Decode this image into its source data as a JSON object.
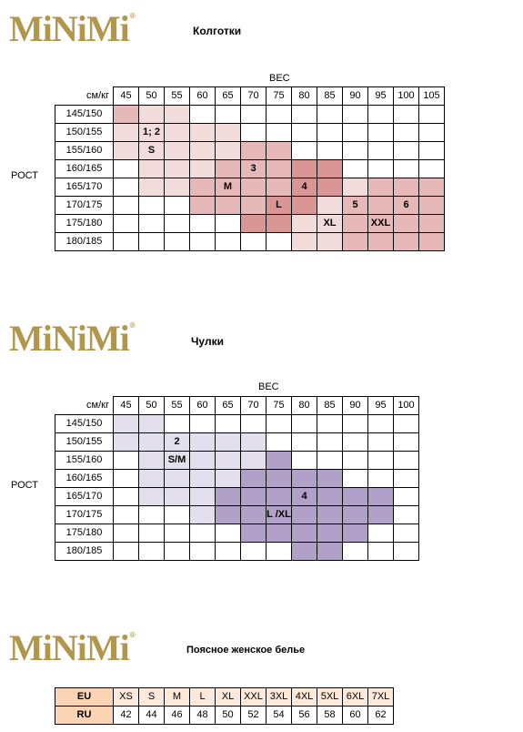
{
  "brand": "MiNiMi",
  "brand_mark": "®",
  "colors": {
    "c1": "#f2dcdb",
    "c2": "#e6b8b7",
    "c3": "#da9694",
    "s1": "#e4dfec",
    "s2": "#b1a0c7",
    "eu_header": "#fbd4b4",
    "eu_row": "#fce9d9"
  },
  "tights": {
    "title": "Колготки",
    "weight_label": "ВЕС",
    "corner": "см/кг",
    "height_label": "РОСТ",
    "weights": [
      "45",
      "50",
      "55",
      "60",
      "65",
      "70",
      "75",
      "80",
      "85",
      "90",
      "95",
      "100",
      "105"
    ],
    "rows": [
      {
        "h": "145/150",
        "cells": [
          [
            "c2",
            ""
          ],
          [
            "c1",
            ""
          ],
          [
            "c1",
            ""
          ],
          [
            "",
            ""
          ],
          [
            "",
            ""
          ],
          [
            "",
            ""
          ],
          [
            "",
            ""
          ],
          [
            "",
            ""
          ],
          [
            "",
            ""
          ],
          [
            "",
            ""
          ],
          [
            "",
            ""
          ],
          [
            "",
            ""
          ],
          [
            "",
            ""
          ]
        ]
      },
      {
        "h": "150/155",
        "cells": [
          [
            "c1",
            ""
          ],
          [
            "c1",
            "1; 2"
          ],
          [
            "c1",
            ""
          ],
          [
            "c1",
            ""
          ],
          [
            "c1",
            ""
          ],
          [
            "",
            ""
          ],
          [
            "",
            ""
          ],
          [
            "",
            ""
          ],
          [
            "",
            ""
          ],
          [
            "",
            ""
          ],
          [
            "",
            ""
          ],
          [
            "",
            ""
          ],
          [
            "",
            ""
          ]
        ]
      },
      {
        "h": "155/160",
        "cells": [
          [
            "c1",
            ""
          ],
          [
            "c1",
            "S"
          ],
          [
            "c1",
            ""
          ],
          [
            "c1",
            ""
          ],
          [
            "c1",
            ""
          ],
          [
            "c2",
            ""
          ],
          [
            "c2",
            ""
          ],
          [
            "",
            ""
          ],
          [
            "",
            ""
          ],
          [
            "",
            ""
          ],
          [
            "",
            ""
          ],
          [
            "",
            ""
          ],
          [
            "",
            ""
          ]
        ]
      },
      {
        "h": "160/165",
        "cells": [
          [
            "",
            ""
          ],
          [
            "c1",
            ""
          ],
          [
            "c1",
            ""
          ],
          [
            "c1",
            ""
          ],
          [
            "c2",
            ""
          ],
          [
            "c2",
            "3"
          ],
          [
            "c2",
            ""
          ],
          [
            "c3",
            ""
          ],
          [
            "c3",
            ""
          ],
          [
            "",
            ""
          ],
          [
            "",
            ""
          ],
          [
            "",
            ""
          ],
          [
            "",
            ""
          ]
        ]
      },
      {
        "h": "165/170",
        "cells": [
          [
            "",
            ""
          ],
          [
            "c1",
            ""
          ],
          [
            "c1",
            ""
          ],
          [
            "c2",
            ""
          ],
          [
            "c2",
            "M"
          ],
          [
            "c2",
            ""
          ],
          [
            "c2",
            ""
          ],
          [
            "c3",
            "4"
          ],
          [
            "c3",
            ""
          ],
          [
            "c1",
            ""
          ],
          [
            "c2",
            ""
          ],
          [
            "c2",
            ""
          ],
          [
            "c2",
            ""
          ]
        ]
      },
      {
        "h": "170/175",
        "cells": [
          [
            "",
            ""
          ],
          [
            "",
            ""
          ],
          [
            "",
            ""
          ],
          [
            "c2",
            ""
          ],
          [
            "c2",
            ""
          ],
          [
            "c2",
            ""
          ],
          [
            "c3",
            "L"
          ],
          [
            "c3",
            ""
          ],
          [
            "c1",
            ""
          ],
          [
            "c2",
            "5"
          ],
          [
            "c2",
            ""
          ],
          [
            "c2",
            "6"
          ],
          [
            "c2",
            ""
          ]
        ]
      },
      {
        "h": "175/180",
        "cells": [
          [
            "",
            ""
          ],
          [
            "",
            ""
          ],
          [
            "",
            ""
          ],
          [
            "",
            ""
          ],
          [
            "",
            ""
          ],
          [
            "c3",
            ""
          ],
          [
            "c3",
            ""
          ],
          [
            "c1",
            ""
          ],
          [
            "c1",
            "XL"
          ],
          [
            "c2",
            ""
          ],
          [
            "c2",
            "XXL"
          ],
          [
            "c2",
            ""
          ],
          [
            "c2",
            ""
          ]
        ]
      },
      {
        "h": "180/185",
        "cells": [
          [
            "",
            ""
          ],
          [
            "",
            ""
          ],
          [
            "",
            ""
          ],
          [
            "",
            ""
          ],
          [
            "",
            ""
          ],
          [
            "",
            ""
          ],
          [
            "",
            ""
          ],
          [
            "c1",
            ""
          ],
          [
            "c1",
            ""
          ],
          [
            "c2",
            ""
          ],
          [
            "c2",
            ""
          ],
          [
            "c2",
            ""
          ],
          [
            "c2",
            ""
          ]
        ]
      }
    ]
  },
  "stockings": {
    "title": "Чулки",
    "weight_label": "ВЕС",
    "corner": "см/кг",
    "height_label": "РОСТ",
    "weights": [
      "45",
      "50",
      "55",
      "60",
      "65",
      "70",
      "75",
      "80",
      "85",
      "90",
      "95",
      "100"
    ],
    "rows": [
      {
        "h": "145/150",
        "cells": [
          [
            "s1",
            ""
          ],
          [
            "s1",
            ""
          ],
          [
            "",
            ""
          ],
          [
            "",
            ""
          ],
          [
            "",
            ""
          ],
          [
            "",
            ""
          ],
          [
            "",
            ""
          ],
          [
            "",
            ""
          ],
          [
            "",
            ""
          ],
          [
            "",
            ""
          ],
          [
            "",
            ""
          ],
          [
            "",
            ""
          ]
        ]
      },
      {
        "h": "150/155",
        "cells": [
          [
            "s1",
            ""
          ],
          [
            "s1",
            ""
          ],
          [
            "s1",
            "2"
          ],
          [
            "s1",
            ""
          ],
          [
            "s1",
            ""
          ],
          [
            "s1",
            ""
          ],
          [
            "",
            ""
          ],
          [
            "",
            ""
          ],
          [
            "",
            ""
          ],
          [
            "",
            ""
          ],
          [
            "",
            ""
          ],
          [
            "",
            ""
          ]
        ]
      },
      {
        "h": "155/160",
        "cells": [
          [
            "",
            ""
          ],
          [
            "s1",
            ""
          ],
          [
            "s1",
            "S/M"
          ],
          [
            "s1",
            ""
          ],
          [
            "s1",
            ""
          ],
          [
            "s1",
            ""
          ],
          [
            "s2",
            ""
          ],
          [
            "",
            ""
          ],
          [
            "",
            ""
          ],
          [
            "",
            ""
          ],
          [
            "",
            ""
          ],
          [
            "",
            ""
          ]
        ]
      },
      {
        "h": "160/165",
        "cells": [
          [
            "",
            ""
          ],
          [
            "s1",
            ""
          ],
          [
            "s1",
            ""
          ],
          [
            "s1",
            ""
          ],
          [
            "s1",
            ""
          ],
          [
            "s2",
            ""
          ],
          [
            "s2",
            ""
          ],
          [
            "s2",
            ""
          ],
          [
            "s2",
            ""
          ],
          [
            "",
            ""
          ],
          [
            "",
            ""
          ],
          [
            "",
            ""
          ]
        ]
      },
      {
        "h": "165/170",
        "cells": [
          [
            "",
            ""
          ],
          [
            "s1",
            ""
          ],
          [
            "s1",
            ""
          ],
          [
            "s1",
            ""
          ],
          [
            "s2",
            ""
          ],
          [
            "s2",
            ""
          ],
          [
            "s2",
            ""
          ],
          [
            "s2",
            "4"
          ],
          [
            "s2",
            ""
          ],
          [
            "s2",
            ""
          ],
          [
            "s2",
            ""
          ],
          [
            "",
            ""
          ]
        ]
      },
      {
        "h": "170/175",
        "cells": [
          [
            "",
            ""
          ],
          [
            "",
            ""
          ],
          [
            "",
            ""
          ],
          [
            "s1",
            ""
          ],
          [
            "s2",
            ""
          ],
          [
            "s2",
            ""
          ],
          [
            "s2",
            "L /XL"
          ],
          [
            "s2",
            ""
          ],
          [
            "s2",
            ""
          ],
          [
            "s2",
            ""
          ],
          [
            "s2",
            ""
          ],
          [
            "",
            ""
          ]
        ]
      },
      {
        "h": "175/180",
        "cells": [
          [
            "",
            ""
          ],
          [
            "",
            ""
          ],
          [
            "",
            ""
          ],
          [
            "",
            ""
          ],
          [
            "",
            ""
          ],
          [
            "s2",
            ""
          ],
          [
            "s2",
            ""
          ],
          [
            "s2",
            ""
          ],
          [
            "s2",
            ""
          ],
          [
            "s2",
            ""
          ],
          [
            "",
            ""
          ],
          [
            "",
            ""
          ]
        ]
      },
      {
        "h": "180/185",
        "cells": [
          [
            "",
            ""
          ],
          [
            "",
            ""
          ],
          [
            "",
            ""
          ],
          [
            "",
            ""
          ],
          [
            "",
            ""
          ],
          [
            "",
            ""
          ],
          [
            "",
            ""
          ],
          [
            "s2",
            ""
          ],
          [
            "s2",
            ""
          ],
          [
            "",
            ""
          ],
          [
            "",
            ""
          ],
          [
            "",
            ""
          ]
        ]
      }
    ]
  },
  "lingerie": {
    "title": "Поясное женское белье",
    "eu_label": "EU",
    "ru_label": "RU",
    "eu": [
      "XS",
      "S",
      "M",
      "L",
      "XL",
      "XXL",
      "3XL",
      "4XL",
      "5XL",
      "6XL",
      "7XL"
    ],
    "ru": [
      "42",
      "44",
      "46",
      "48",
      "50",
      "52",
      "54",
      "56",
      "58",
      "60",
      "62"
    ]
  }
}
